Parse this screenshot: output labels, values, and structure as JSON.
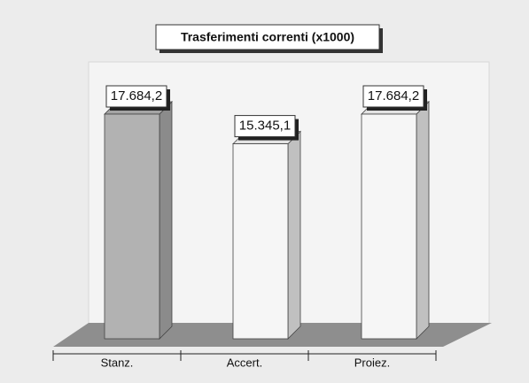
{
  "chart_data": {
    "type": "bar3d",
    "title": "Trasferimenti correnti (x1000)",
    "categories": [
      "Stanz.",
      "Accert.",
      "Proiez."
    ],
    "values": [
      17684.2,
      15345.1,
      17684.2
    ],
    "value_labels": [
      "17.684,2",
      "15.345,1",
      "17.684,2"
    ],
    "colors": [
      "#b2b2b2",
      "#f6f6f6",
      "#f6f6f6"
    ]
  }
}
